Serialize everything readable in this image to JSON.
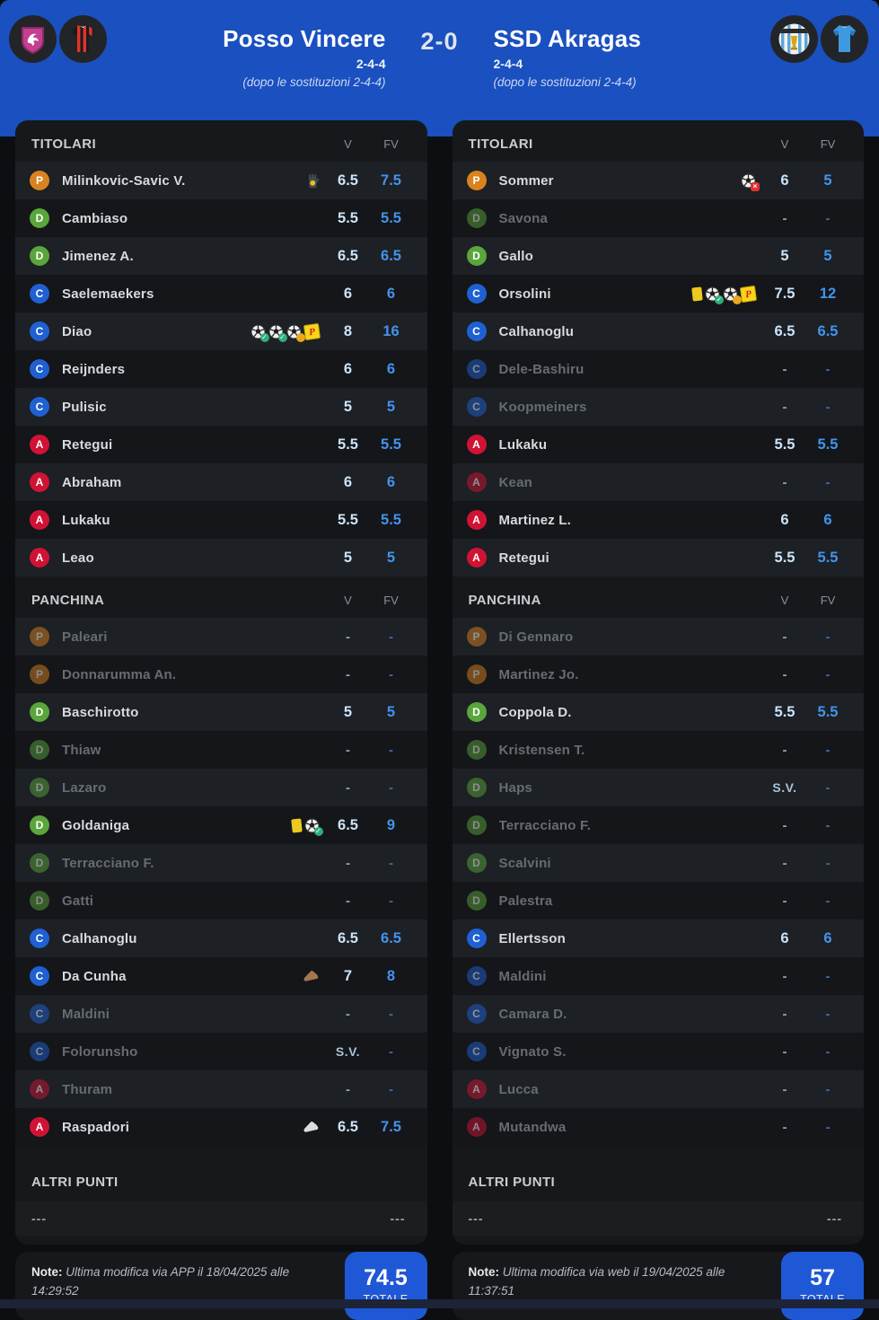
{
  "header": {
    "score": "2-0",
    "home": {
      "name": "Posso Vincere",
      "formation": "2-4-4",
      "subs_note": "(dopo le sostituzioni 2-4-4)",
      "logo_icons": [
        "club-shield-pink-dragon",
        "jersey-red-black-stripes"
      ]
    },
    "away": {
      "name": "SSD Akragas",
      "formation": "2-4-4",
      "subs_note": "(dopo le sostituzioni 2-4-4)",
      "logo_icons": [
        "club-crest-akragas",
        "jersey-light-blue"
      ]
    }
  },
  "labels": {
    "titolari": "TITOLARI",
    "panchina": "PANCHINA",
    "altri_punti": "ALTRI PUNTI",
    "v": "V",
    "fv": "FV",
    "totale": "TOTALE",
    "note_label": "Note:",
    "dashes": "---"
  },
  "colors": {
    "header_blue": "#1a50bf",
    "totale_blue": "#1f58d6",
    "fv_blue": "#4493ec",
    "v_light": "#cbe3f8",
    "role_p": "#d9831f",
    "role_d": "#5aa53c",
    "role_c": "#1f60d2",
    "role_a": "#d01335"
  },
  "teams": [
    {
      "titolari": [
        {
          "role": "P",
          "name": "Milinkovic-Savic V.",
          "icons": [
            "save-glove-icon"
          ],
          "v": "6.5",
          "fv": "7.5",
          "played": true
        },
        {
          "role": "D",
          "name": "Cambiaso",
          "icons": [],
          "v": "5.5",
          "fv": "5.5",
          "played": true
        },
        {
          "role": "D",
          "name": "Jimenez A.",
          "icons": [],
          "v": "6.5",
          "fv": "6.5",
          "played": true
        },
        {
          "role": "C",
          "name": "Saelemaekers",
          "icons": [],
          "v": "6",
          "fv": "6",
          "played": true
        },
        {
          "role": "C",
          "name": "Diao",
          "icons": [
            "goal-icon",
            "goal-icon",
            "assist-icon",
            "penalty-icon"
          ],
          "v": "8",
          "fv": "16",
          "played": true
        },
        {
          "role": "C",
          "name": "Reijnders",
          "icons": [],
          "v": "6",
          "fv": "6",
          "played": true
        },
        {
          "role": "C",
          "name": "Pulisic",
          "icons": [],
          "v": "5",
          "fv": "5",
          "played": true
        },
        {
          "role": "A",
          "name": "Retegui",
          "icons": [],
          "v": "5.5",
          "fv": "5.5",
          "played": true
        },
        {
          "role": "A",
          "name": "Abraham",
          "icons": [],
          "v": "6",
          "fv": "6",
          "played": true
        },
        {
          "role": "A",
          "name": "Lukaku",
          "icons": [],
          "v": "5.5",
          "fv": "5.5",
          "played": true
        },
        {
          "role": "A",
          "name": "Leao",
          "icons": [],
          "v": "5",
          "fv": "5",
          "played": true
        }
      ],
      "panchina": [
        {
          "role": "P",
          "name": "Paleari",
          "icons": [],
          "v": "-",
          "fv": "-",
          "played": false
        },
        {
          "role": "P",
          "name": "Donnarumma An.",
          "icons": [],
          "v": "-",
          "fv": "-",
          "played": false
        },
        {
          "role": "D",
          "name": "Baschirotto",
          "icons": [],
          "v": "5",
          "fv": "5",
          "played": true
        },
        {
          "role": "D",
          "name": "Thiaw",
          "icons": [],
          "v": "-",
          "fv": "-",
          "played": false
        },
        {
          "role": "D",
          "name": "Lazaro",
          "icons": [],
          "v": "-",
          "fv": "-",
          "played": false
        },
        {
          "role": "D",
          "name": "Goldaniga",
          "icons": [
            "yellow-card-icon",
            "goal-icon"
          ],
          "v": "6.5",
          "fv": "9",
          "played": true
        },
        {
          "role": "D",
          "name": "Terracciano F.",
          "icons": [],
          "v": "-",
          "fv": "-",
          "played": false
        },
        {
          "role": "D",
          "name": "Gatti",
          "icons": [],
          "v": "-",
          "fv": "-",
          "played": false
        },
        {
          "role": "C",
          "name": "Calhanoglu",
          "icons": [],
          "v": "6.5",
          "fv": "6.5",
          "played": true
        },
        {
          "role": "C",
          "name": "Da Cunha",
          "icons": [
            "shoe-brown-icon"
          ],
          "v": "7",
          "fv": "8",
          "played": true
        },
        {
          "role": "C",
          "name": "Maldini",
          "icons": [],
          "v": "-",
          "fv": "-",
          "played": false
        },
        {
          "role": "C",
          "name": "Folorunsho",
          "icons": [],
          "v": "S.V.",
          "fv": "-",
          "played": false
        },
        {
          "role": "A",
          "name": "Thuram",
          "icons": [],
          "v": "-",
          "fv": "-",
          "played": false
        },
        {
          "role": "A",
          "name": "Raspadori",
          "icons": [
            "shoe-white-icon"
          ],
          "v": "6.5",
          "fv": "7.5",
          "played": true
        }
      ],
      "altri_punti": {
        "left": "---",
        "right": "---"
      },
      "note": "Ultima modifica via APP il 18/04/2025 alle 14:29:52",
      "totale": "74.5"
    },
    {
      "titolari": [
        {
          "role": "P",
          "name": "Sommer",
          "icons": [
            "goal-conceded-icon"
          ],
          "v": "6",
          "fv": "5",
          "played": true
        },
        {
          "role": "D",
          "name": "Savona",
          "icons": [],
          "v": "-",
          "fv": "-",
          "played": false
        },
        {
          "role": "D",
          "name": "Gallo",
          "icons": [],
          "v": "5",
          "fv": "5",
          "played": true
        },
        {
          "role": "C",
          "name": "Orsolini",
          "icons": [
            "yellow-card-icon",
            "goal-icon",
            "assist-icon",
            "penalty-icon"
          ],
          "v": "7.5",
          "fv": "12",
          "played": true
        },
        {
          "role": "C",
          "name": "Calhanoglu",
          "icons": [],
          "v": "6.5",
          "fv": "6.5",
          "played": true
        },
        {
          "role": "C",
          "name": "Dele-Bashiru",
          "icons": [],
          "v": "-",
          "fv": "-",
          "played": false
        },
        {
          "role": "C",
          "name": "Koopmeiners",
          "icons": [],
          "v": "-",
          "fv": "-",
          "played": false
        },
        {
          "role": "A",
          "name": "Lukaku",
          "icons": [],
          "v": "5.5",
          "fv": "5.5",
          "played": true
        },
        {
          "role": "A",
          "name": "Kean",
          "icons": [],
          "v": "-",
          "fv": "-",
          "played": false
        },
        {
          "role": "A",
          "name": "Martinez L.",
          "icons": [],
          "v": "6",
          "fv": "6",
          "played": true
        },
        {
          "role": "A",
          "name": "Retegui",
          "icons": [],
          "v": "5.5",
          "fv": "5.5",
          "played": true
        }
      ],
      "panchina": [
        {
          "role": "P",
          "name": "Di Gennaro",
          "icons": [],
          "v": "-",
          "fv": "-",
          "played": false
        },
        {
          "role": "P",
          "name": "Martinez Jo.",
          "icons": [],
          "v": "-",
          "fv": "-",
          "played": false
        },
        {
          "role": "D",
          "name": "Coppola D.",
          "icons": [],
          "v": "5.5",
          "fv": "5.5",
          "played": true
        },
        {
          "role": "D",
          "name": "Kristensen T.",
          "icons": [],
          "v": "-",
          "fv": "-",
          "played": false
        },
        {
          "role": "D",
          "name": "Haps",
          "icons": [],
          "v": "S.V.",
          "fv": "-",
          "played": false
        },
        {
          "role": "D",
          "name": "Terracciano F.",
          "icons": [],
          "v": "-",
          "fv": "-",
          "played": false
        },
        {
          "role": "D",
          "name": "Scalvini",
          "icons": [],
          "v": "-",
          "fv": "-",
          "played": false
        },
        {
          "role": "D",
          "name": "Palestra",
          "icons": [],
          "v": "-",
          "fv": "-",
          "played": false
        },
        {
          "role": "C",
          "name": "Ellertsson",
          "icons": [],
          "v": "6",
          "fv": "6",
          "played": true
        },
        {
          "role": "C",
          "name": "Maldini",
          "icons": [],
          "v": "-",
          "fv": "-",
          "played": false
        },
        {
          "role": "C",
          "name": "Camara D.",
          "icons": [],
          "v": "-",
          "fv": "-",
          "played": false
        },
        {
          "role": "C",
          "name": "Vignato S.",
          "icons": [],
          "v": "-",
          "fv": "-",
          "played": false
        },
        {
          "role": "A",
          "name": "Lucca",
          "icons": [],
          "v": "-",
          "fv": "-",
          "played": false
        },
        {
          "role": "A",
          "name": "Mutandwa",
          "icons": [],
          "v": "-",
          "fv": "-",
          "played": false
        }
      ],
      "altri_punti": {
        "left": "---",
        "right": "---"
      },
      "note": "Ultima modifica via web il 19/04/2025 alle 11:37:51",
      "totale": "57"
    }
  ]
}
